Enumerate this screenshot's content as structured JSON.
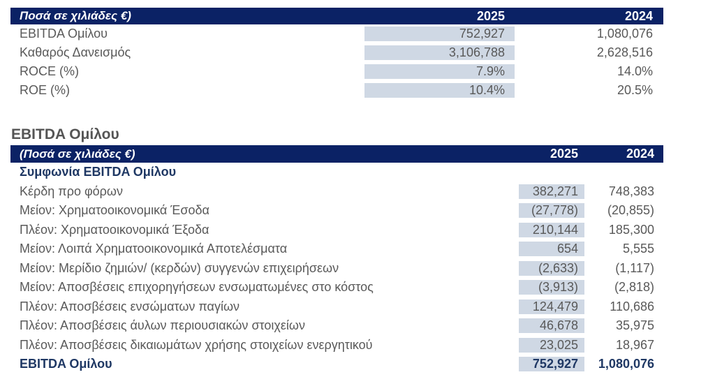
{
  "colors": {
    "header_bg": "#0b2265",
    "highlight_column": "#cfd8e4",
    "body_text": "#595959",
    "accent_navy_text": "#1f3864",
    "header_text": "#ffffff"
  },
  "summary_table": {
    "header": {
      "label": "Ποσά σε χιλιάδες €)",
      "col_2025": "2025",
      "col_2024": "2024"
    },
    "rows": [
      {
        "label": "EBITDA Ομίλου",
        "v2025": "752,927",
        "v2024": "1,080,076"
      },
      {
        "label": "Καθαρός Δανεισμός",
        "v2025": "3,106,788",
        "v2024": "2,628,516"
      },
      {
        "label": "ROCE (%)",
        "v2025": "7.9%",
        "v2024": "14.0%"
      },
      {
        "label": "ROE (%)",
        "v2025": "10.4%",
        "v2024": "20.5%"
      }
    ]
  },
  "section_title": "EBITDA Ομίλου",
  "ebitda_table": {
    "header": {
      "label": "(Ποσά σε χιλιάδες €)",
      "col_2025": "2025",
      "col_2024": "2024"
    },
    "rows": [
      {
        "label": "Συμφωνία EBITDA Ομίλου",
        "v2025": "",
        "v2024": "",
        "style": "subheader"
      },
      {
        "label": "Κέρδη προ φόρων",
        "v2025": "382,271",
        "v2024": "748,383",
        "style": "normal"
      },
      {
        "label": "Μείον: Χρηματοοικονομικά Έσοδα",
        "v2025": "(27,778)",
        "v2024": "(20,855)",
        "style": "normal"
      },
      {
        "label": "Πλέον: Χρηματοοικονομικά Έξοδα",
        "v2025": "210,144",
        "v2024": "185,300",
        "style": "normal"
      },
      {
        "label": "Μείον: Λοιπά Χρηματοοικονομικά Αποτελέσματα",
        "v2025": "654",
        "v2024": "5,555",
        "style": "normal"
      },
      {
        "label": "Μείον: Μερίδιο ζημιών/ (κερδών) συγγενών επιχειρήσεων",
        "v2025": "(2,633)",
        "v2024": "(1,117)",
        "style": "normal"
      },
      {
        "label": "Μείον: Αποσβέσεις επιχορηγήσεων ενσωματωμένες στο κόστος",
        "v2025": "(3,913)",
        "v2024": "(2,818)",
        "style": "normal"
      },
      {
        "label": "Πλέον: Αποσβέσεις ενσώματων παγίων",
        "v2025": "124,479",
        "v2024": "110,686",
        "style": "normal"
      },
      {
        "label": "Πλέον: Αποσβέσεις άυλων περιουσιακών στοιχείων",
        "v2025": "46,678",
        "v2024": "35,975",
        "style": "normal"
      },
      {
        "label": "Πλέον: Αποσβέσεις δικαιωμάτων χρήσης στοιχείων ενεργητικού",
        "v2025": "23,025",
        "v2024": "18,967",
        "style": "normal"
      },
      {
        "label": "EBITDA  Ομίλου",
        "v2025": "752,927",
        "v2024": "1,080,076",
        "style": "total"
      }
    ]
  }
}
